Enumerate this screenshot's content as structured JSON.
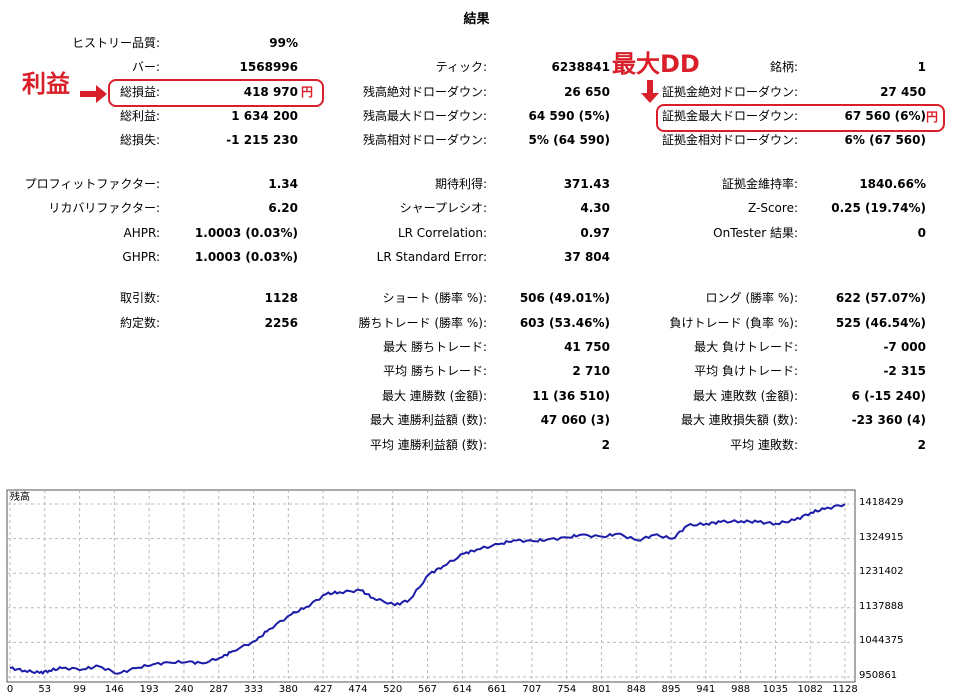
{
  "title": "結果",
  "col1": [
    {
      "label": "ヒストリー品質:",
      "value": "99%"
    },
    {
      "label": "バー:",
      "value": "1568996"
    },
    {
      "label": "総損益:",
      "value": "418 970"
    },
    {
      "label": "総利益:",
      "value": "1 634 200"
    },
    {
      "label": "総損失:",
      "value": "-1 215 230"
    },
    {
      "label": "プロフィットファクター:",
      "value": "1.34"
    },
    {
      "label": "リカバリファクター:",
      "value": "6.20"
    },
    {
      "label": "AHPR:",
      "value": "1.0003 (0.03%)"
    },
    {
      "label": "GHPR:",
      "value": "1.0003 (0.03%)"
    },
    {
      "label": "取引数:",
      "value": "1128"
    },
    {
      "label": "約定数:",
      "value": "2256"
    }
  ],
  "col2": [
    {
      "label": "ティック:",
      "value": "6238841"
    },
    {
      "label": "残高絶対ドローダウン:",
      "value": "26 650"
    },
    {
      "label": "残高最大ドローダウン:",
      "value": "64 590 (5%)"
    },
    {
      "label": "残高相対ドローダウン:",
      "value": "5% (64 590)"
    },
    {
      "label": "期待利得:",
      "value": "371.43"
    },
    {
      "label": "シャープレシオ:",
      "value": "4.30"
    },
    {
      "label": "LR Correlation:",
      "value": "0.97"
    },
    {
      "label": "LR Standard Error:",
      "value": "37 804"
    },
    {
      "label": "ショート (勝率 %):",
      "value": "506 (49.01%)"
    },
    {
      "label": "勝ちトレード (勝率 %):",
      "value": "603 (53.46%)"
    },
    {
      "label": "最大 勝ちトレード:",
      "value": "41 750"
    },
    {
      "label": "平均 勝ちトレード:",
      "value": "2 710"
    },
    {
      "label": "最大 連勝数 (金額):",
      "value": "11 (36 510)"
    },
    {
      "label": "最大 連勝利益額 (数):",
      "value": "47 060 (3)"
    },
    {
      "label": "平均 連勝利益額 (数):",
      "value": "2"
    }
  ],
  "col3": [
    {
      "label": "銘柄:",
      "value": "1"
    },
    {
      "label": "証拠金絶対ドローダウン:",
      "value": "27 450"
    },
    {
      "label": "証拠金最大ドローダウン:",
      "value": "67 560 (6%)"
    },
    {
      "label": "証拠金相対ドローダウン:",
      "value": "6% (67 560)"
    },
    {
      "label": "証拠金維持率:",
      "value": "1840.66%"
    },
    {
      "label": "Z-Score:",
      "value": "0.25 (19.74%)"
    },
    {
      "label": "OnTester 結果:",
      "value": "0"
    },
    {
      "label": "ロング (勝率 %):",
      "value": "622 (57.07%)"
    },
    {
      "label": "負けトレード (負率 %):",
      "value": "525 (46.54%)"
    },
    {
      "label": "最大 負けトレード:",
      "value": "-7 000"
    },
    {
      "label": "平均 負けトレード:",
      "value": "-2 315"
    },
    {
      "label": "最大 連敗数 (金額):",
      "value": "6 (-15 240)"
    },
    {
      "label": "最大 連敗損失額 (数):",
      "value": "-23 360 (4)"
    },
    {
      "label": "平均 連敗数:",
      "value": "2"
    }
  ],
  "annotations": {
    "profit_label": "利益",
    "maxdd_label": "最大DD",
    "yen": "円",
    "color": "#d9202a"
  },
  "chart_data": {
    "type": "line",
    "title": "残高",
    "line_color": "#1c1ca8",
    "grid": true,
    "y_ticks": [
      "1418429",
      "1324915",
      "1231402",
      "1137888",
      "1044375",
      "950861"
    ],
    "x_ticks": [
      "0",
      "53",
      "99",
      "146",
      "193",
      "240",
      "287",
      "333",
      "380",
      "427",
      "474",
      "520",
      "567",
      "614",
      "661",
      "707",
      "754",
      "801",
      "848",
      "895",
      "941",
      "988",
      "1035",
      "1082",
      "1128"
    ],
    "ylim": [
      950861,
      1418429
    ],
    "xlim": [
      0,
      1128
    ],
    "x": [
      0,
      20,
      40,
      53,
      70,
      99,
      120,
      146,
      170,
      193,
      215,
      240,
      260,
      287,
      300,
      333,
      350,
      380,
      400,
      427,
      445,
      474,
      490,
      520,
      540,
      567,
      585,
      614,
      630,
      661,
      680,
      707,
      725,
      754,
      770,
      801,
      820,
      848,
      870,
      895,
      915,
      941,
      960,
      988,
      1010,
      1035,
      1060,
      1082,
      1100,
      1128
    ],
    "values": [
      975000,
      968000,
      962000,
      968000,
      975000,
      972000,
      980000,
      960000,
      975000,
      985000,
      990000,
      992000,
      988000,
      1005000,
      1020000,
      1050000,
      1080000,
      1120000,
      1140000,
      1175000,
      1180000,
      1185000,
      1165000,
      1145000,
      1160000,
      1230000,
      1250000,
      1285000,
      1295000,
      1310000,
      1320000,
      1318000,
      1322000,
      1328000,
      1335000,
      1330000,
      1338000,
      1320000,
      1335000,
      1325000,
      1360000,
      1365000,
      1370000,
      1372000,
      1370000,
      1365000,
      1375000,
      1395000,
      1405000,
      1418000
    ]
  }
}
